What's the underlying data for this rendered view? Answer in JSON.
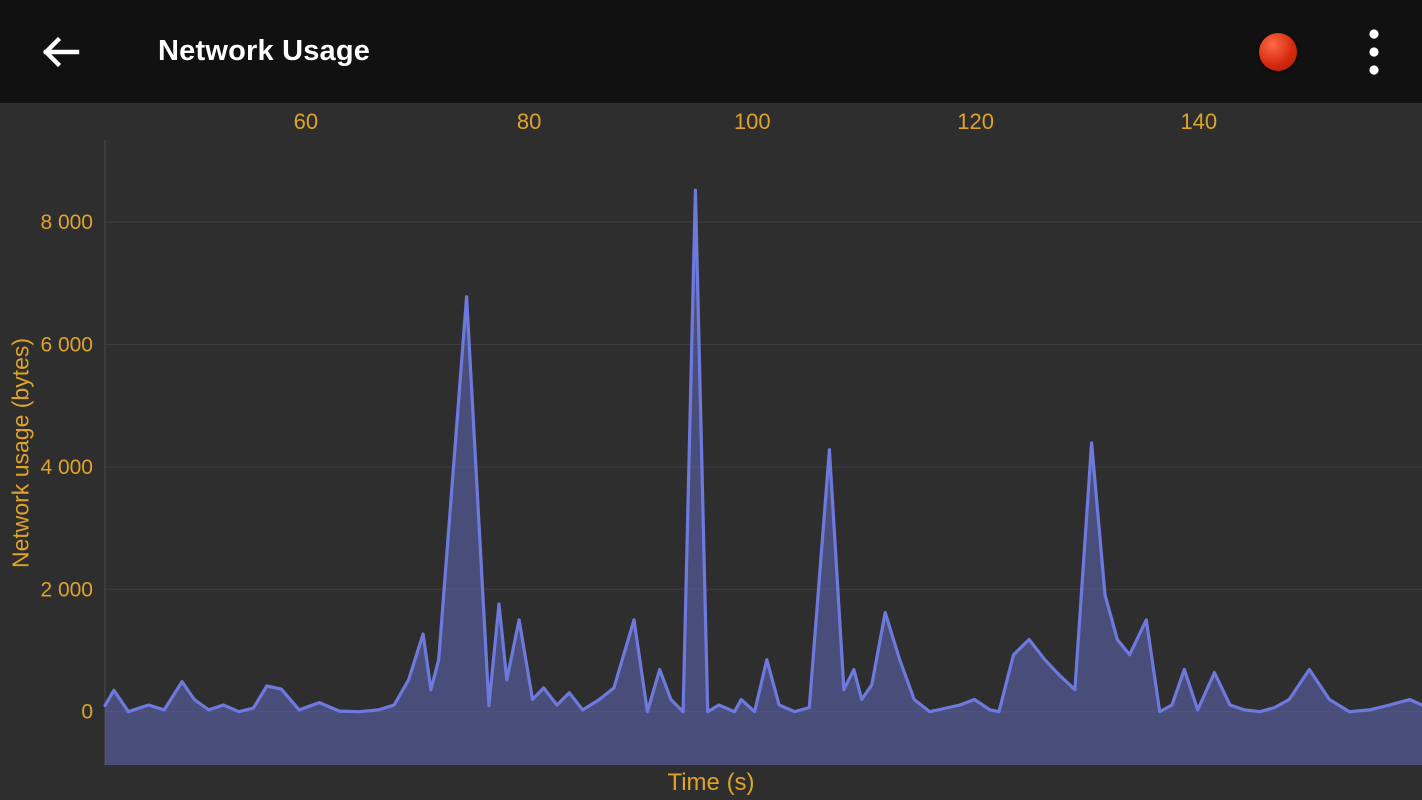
{
  "app_bar": {
    "title": "Network Usage",
    "icons": {
      "back": "arrow-left",
      "record": "filled-red-circle",
      "menu": "vertical-ellipsis"
    }
  },
  "colors": {
    "app_bar_bg": "#111111",
    "chart_bg": "#2e2e2e",
    "grid": "#3f3f3f",
    "axis_line": "#4b4b4b",
    "axis_text": "#dfa32a",
    "line": "#6e79dd",
    "fill": "rgba(99,107,196,0.5)",
    "record_red": "#d52c10",
    "title_text": "#ffffff"
  },
  "chart_data": {
    "type": "area",
    "title": "",
    "xlabel": "Time (s)",
    "ylabel": "Network usage (bytes)",
    "xlim": [
      42,
      160
    ],
    "ylim": [
      -870,
      9340
    ],
    "grid": "horizontal",
    "legend": "none",
    "x_ticks": [
      {
        "value": 60,
        "label": "60"
      },
      {
        "value": 80,
        "label": "80"
      },
      {
        "value": 100,
        "label": "100"
      },
      {
        "value": 120,
        "label": "120"
      },
      {
        "value": 140,
        "label": "140"
      }
    ],
    "y_ticks": [
      {
        "value": 0,
        "label": "0"
      },
      {
        "value": 2000,
        "label": "2 000"
      },
      {
        "value": 4000,
        "label": "4 000"
      },
      {
        "value": 6000,
        "label": "6 000"
      },
      {
        "value": 8000,
        "label": "8 000"
      }
    ],
    "series": [
      {
        "name": "Network usage",
        "x": [
          42,
          42.8,
          44.1,
          45.9,
          47.3,
          48.9,
          50,
          51.3,
          52.6,
          54,
          55.3,
          56.5,
          57.8,
          59.4,
          61.2,
          63,
          64.8,
          66.5,
          67.9,
          69.2,
          70.5,
          71.2,
          71.9,
          74.4,
          76.4,
          77.3,
          78,
          79.1,
          80.3,
          81.3,
          82.5,
          83.6,
          84.8,
          86.3,
          87.6,
          89.4,
          90.6,
          91.7,
          92.7,
          93.8,
          94.9,
          96,
          97,
          98.4,
          99,
          100.2,
          101.3,
          102.4,
          103.8,
          105.1,
          106.9,
          108.2,
          109.1,
          109.8,
          110.7,
          111.9,
          113.2,
          114.5,
          115.9,
          118.6,
          119.9,
          121.3,
          122.1,
          123.4,
          124.8,
          126.2,
          127.5,
          128.9,
          130.4,
          131.6,
          132.7,
          133.8,
          135.3,
          136.5,
          137.6,
          138.7,
          139.9,
          141.4,
          142.8,
          144.1,
          145.5,
          146.8,
          148.1,
          149.9,
          151.7,
          153.5,
          155.3,
          157.1,
          158.9,
          160
        ],
        "y": [
          100,
          350,
          0,
          110,
          30,
          490,
          200,
          30,
          110,
          0,
          60,
          420,
          370,
          30,
          150,
          10,
          0,
          30,
          110,
          520,
          1270,
          360,
          850,
          6780,
          100,
          1760,
          520,
          1500,
          200,
          390,
          110,
          310,
          30,
          200,
          390,
          1500,
          0,
          690,
          200,
          0,
          8520,
          0,
          110,
          0,
          200,
          0,
          850,
          110,
          0,
          70,
          4280,
          360,
          690,
          200,
          440,
          1620,
          850,
          200,
          0,
          110,
          200,
          30,
          0,
          930,
          1180,
          850,
          600,
          360,
          4390,
          1910,
          1180,
          930,
          1500,
          0,
          110,
          690,
          30,
          640,
          110,
          30,
          0,
          70,
          200,
          690,
          200,
          0,
          30,
          110,
          200,
          110
        ]
      }
    ]
  }
}
